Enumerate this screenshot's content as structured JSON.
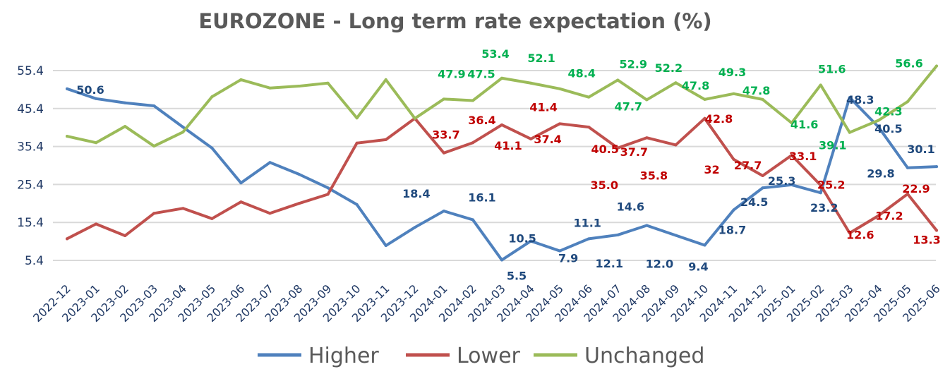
{
  "chart_data": {
    "type": "line",
    "title": "EUROZONE - Long term rate expectation (%)",
    "xlabel": "",
    "ylabel": "",
    "ylim": [
      5.4,
      57
    ],
    "yticks": [
      "5.4",
      "15.4",
      "25.4",
      "35.4",
      "45.4",
      "55.4"
    ],
    "grid": true,
    "legend": "bottom",
    "categories": [
      "2022-12",
      "2023-01",
      "2023-02",
      "2023-03",
      "2023-04",
      "2023-05",
      "2023-06",
      "2023-07",
      "2023-08",
      "2023-09",
      "2023-10",
      "2023-11",
      "2023-12",
      "2024-01",
      "2024-02",
      "2024-03",
      "2024-04",
      "2024-05",
      "2024-06",
      "2024-07",
      "2024-08",
      "2024-09",
      "2024-10",
      "2024-11",
      "2024-12",
      "2025-01",
      "2025-02",
      "2025-03",
      "2025-04",
      "2025-05",
      "2025-06"
    ],
    "series": [
      {
        "name": "Higher",
        "color": "#4f81bd",
        "label_color": "#1f497d",
        "values": [
          50.6,
          48.0,
          46.9,
          46.1,
          40.5,
          35.0,
          25.8,
          31.2,
          28.1,
          24.5,
          20.1,
          9.3,
          14.1,
          18.4,
          16.1,
          5.5,
          10.5,
          7.9,
          11.1,
          12.1,
          14.6,
          12.0,
          9.4,
          18.7,
          24.5,
          25.3,
          23.2,
          48.3,
          40.5,
          29.8,
          30.1
        ],
        "labels": [
          "50.6",
          null,
          null,
          null,
          null,
          null,
          null,
          null,
          null,
          null,
          null,
          null,
          null,
          "18.4",
          "16.1",
          "5.5",
          "10.5",
          "7.9",
          "11.1",
          "12.1",
          "14.6",
          "12.0",
          "9.4",
          "18.7",
          "24.5",
          "25.3",
          "23.2",
          "48.3",
          "40.5",
          "29.8",
          "30.1"
        ]
      },
      {
        "name": "Lower",
        "color": "#c0504d",
        "label_color": "#c00000",
        "values": [
          11.1,
          15.0,
          11.9,
          17.8,
          19.1,
          16.4,
          20.8,
          17.8,
          20.4,
          22.8,
          36.3,
          37.2,
          42.8,
          33.7,
          36.4,
          41.1,
          37.4,
          41.4,
          40.5,
          35.0,
          37.7,
          35.8,
          42.8,
          32,
          27.7,
          33.1,
          25.2,
          12.6,
          17.2,
          22.9,
          13.3
        ],
        "labels": [
          null,
          null,
          null,
          null,
          null,
          null,
          null,
          null,
          null,
          null,
          null,
          null,
          null,
          "33.7",
          "36.4",
          "41.1",
          "37.4",
          "41.4",
          "40.5",
          "35.0",
          "37.7",
          "35.8",
          "42.8",
          "32",
          "27.7",
          "33.1",
          "25.2",
          "12.6",
          "17.2",
          "22.9",
          "13.3"
        ]
      },
      {
        "name": "Unchanged",
        "color": "#9bbb59",
        "label_color": "#00b050",
        "values": [
          38.1,
          36.4,
          40.7,
          35.5,
          39.2,
          48.5,
          53.0,
          50.8,
          51.3,
          52.1,
          42.9,
          53.0,
          42.8,
          47.9,
          47.5,
          53.4,
          52.1,
          50.6,
          48.4,
          52.9,
          47.7,
          52.2,
          47.8,
          49.3,
          47.8,
          41.6,
          51.6,
          39.1,
          42.3,
          47.2,
          56.6
        ],
        "labels": [
          null,
          null,
          null,
          null,
          null,
          null,
          null,
          null,
          null,
          null,
          null,
          null,
          null,
          "47.9",
          "47.5",
          "53.4",
          "52.1",
          null,
          "48.4",
          "52.9",
          "47.7",
          "52.2",
          "47.8",
          "49.3",
          "47.8",
          "41.6",
          "51.6",
          "39.1",
          "42.3",
          null,
          "56.6"
        ]
      }
    ]
  }
}
